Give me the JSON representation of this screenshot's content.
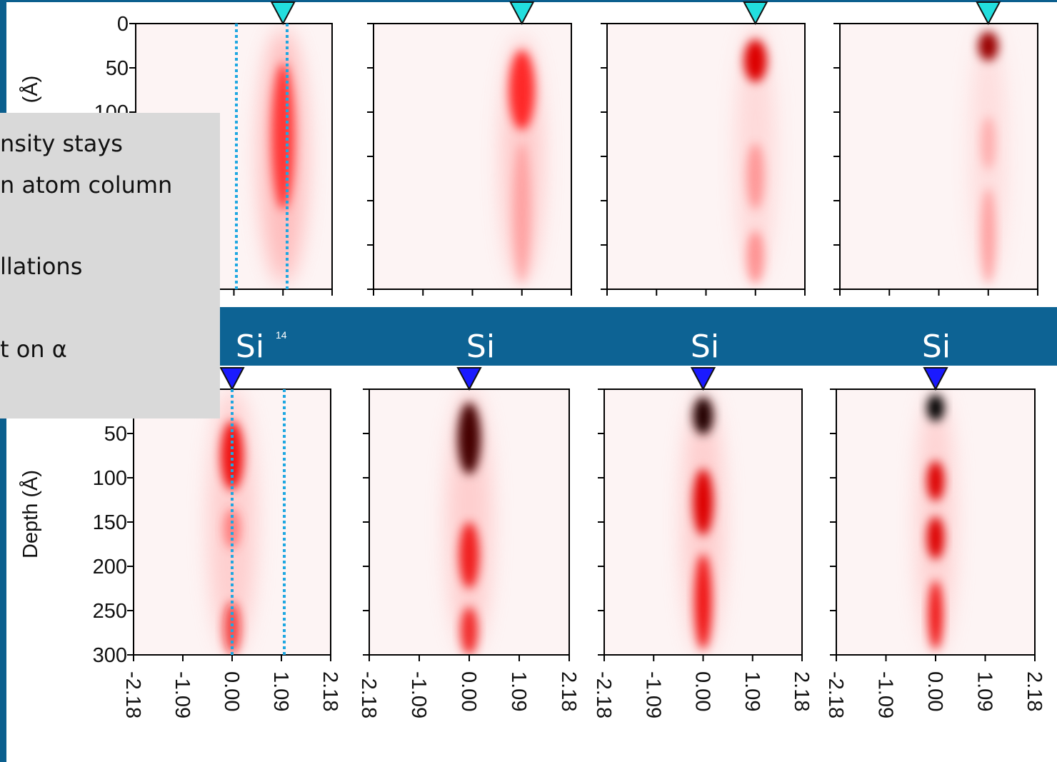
{
  "top_row": {
    "y_axis_label": "(Å)",
    "y_ticks": [
      "0",
      "50",
      "100"
    ]
  },
  "banner": {
    "labels": [
      "Si",
      "Si",
      "Si",
      "Si"
    ],
    "superscript": "14"
  },
  "bottom_row": {
    "y_axis_label": "Depth (Å)",
    "y_ticks": [
      "50",
      "100",
      "150",
      "200",
      "250",
      "300"
    ],
    "x_ticks": [
      "-2.18",
      "-1.09",
      "0.00",
      "1.09",
      "2.18"
    ]
  },
  "note": {
    "lines": [
      "nsity stays",
      "n atom column",
      "llations",
      "t on α"
    ]
  }
}
